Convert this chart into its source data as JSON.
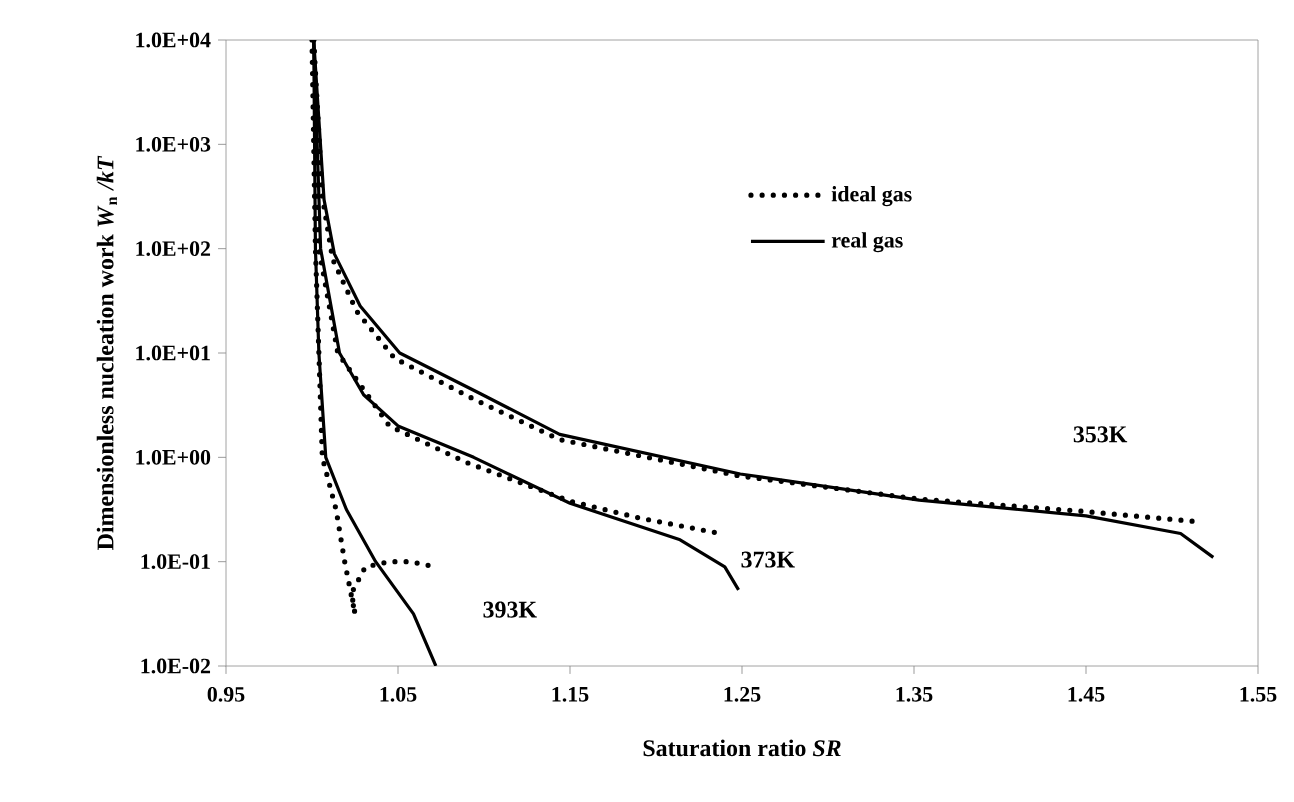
{
  "chart_data": {
    "type": "line",
    "xlabel": "Saturation ratio *SR*",
    "ylabel": "Dimensionless nucleation work *W*$_{n}$ */kT*",
    "xlim": [
      0.95,
      1.55
    ],
    "xticks": [
      0.95,
      1.05,
      1.15,
      1.25,
      1.35,
      1.45,
      1.55
    ],
    "ylim": [
      0.01,
      10000
    ],
    "yticks": [
      {
        "value": 0.01,
        "label": "1.0E-02"
      },
      {
        "value": 0.1,
        "label": "1.0E-01"
      },
      {
        "value": 1,
        "label": "1.0E+00"
      },
      {
        "value": 10,
        "label": "1.0E+01"
      },
      {
        "value": 100,
        "label": "1.0E+02"
      },
      {
        "value": 1000,
        "label": "1.0E+03"
      },
      {
        "value": 10000,
        "label": "1.0E+04"
      }
    ],
    "log": "y",
    "grid": false,
    "legend": "top right",
    "series": [
      {
        "name": "ideal gas",
        "color": "#000000",
        "line_style": "dotted",
        "x": [
          1.001,
          1.006,
          1.012,
          1.026,
          1.048,
          1.095,
          1.144,
          1.249,
          1.353,
          1.45,
          1.517
        ],
        "values": [
          10000,
          316,
          79.4,
          25.1,
          8.91,
          3.55,
          1.48,
          0.661,
          0.398,
          0.302,
          0.24
        ]
      },
      {
        "name": "real gas",
        "color": "#000000",
        "line_style": "solid",
        "x": [
          1.001,
          1.007,
          1.013,
          1.028,
          1.051,
          1.098,
          1.144,
          1.249,
          1.353,
          1.45,
          1.505,
          1.524
        ],
        "values": [
          10000,
          295,
          89.1,
          28.2,
          10,
          4.07,
          1.66,
          0.692,
          0.389,
          0.275,
          0.186,
          0.11
        ]
      },
      {
        "color": "#000000",
        "line_style": "dotted",
        "x": [
          1.001,
          1.004,
          1.015,
          1.045,
          1.09,
          1.15,
          1.19,
          1.234
        ],
        "values": [
          10000,
          100,
          10,
          2.0,
          0.891,
          0.38,
          0.263,
          0.191
        ]
      },
      {
        "color": "#000000",
        "line_style": "solid",
        "x": [
          1.001,
          1.003,
          1.005,
          1.016,
          1.03,
          1.05,
          1.094,
          1.15,
          1.214,
          1.24,
          1.248
        ],
        "values": [
          10000,
          1000,
          100,
          10,
          3.98,
          2.0,
          1.0,
          0.363,
          0.162,
          0.0891,
          0.0537
        ]
      },
      {
        "color": "#000000",
        "line_style": "dotted",
        "x": [
          1.0,
          1.002,
          1.004,
          1.006,
          1.014,
          1.019,
          1.025,
          1.023,
          1.031,
          1.045,
          1.057,
          1.069
        ],
        "values": [
          10000,
          100,
          10,
          1.0,
          0.316,
          0.1,
          0.0316,
          0.05,
          0.0891,
          0.1,
          0.1,
          0.0912
        ]
      },
      {
        "color": "#000000",
        "line_style": "solid",
        "x": [
          1.001,
          1.002,
          1.004,
          1.008,
          1.02,
          1.037,
          1.059,
          1.072
        ],
        "values": [
          10000,
          100,
          10,
          1.0,
          0.316,
          0.1,
          0.0316,
          0.01
        ]
      }
    ],
    "annotations": [
      "353K",
      "373K",
      "393K"
    ]
  }
}
